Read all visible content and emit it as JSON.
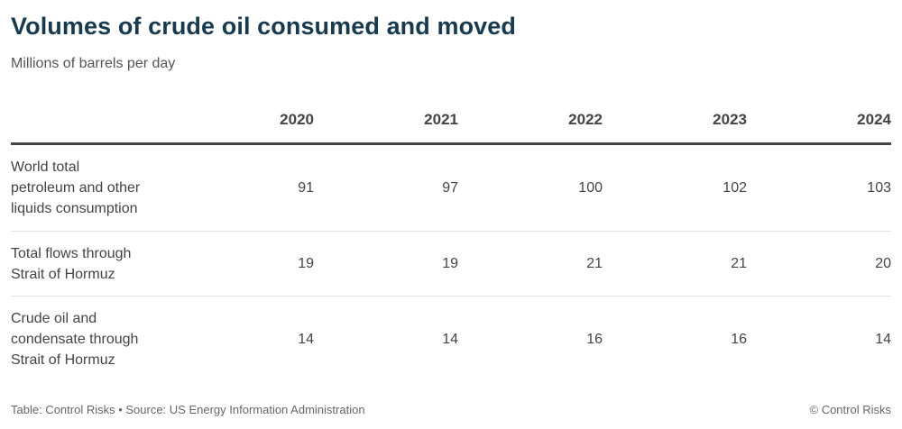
{
  "title": "Volumes of crude oil consumed and moved",
  "subtitle": "Millions of barrels per day",
  "chart_data": {
    "type": "table",
    "title": "Volumes of crude oil consumed and moved",
    "subtitle": "Millions of barrels per day",
    "columns": [
      "2020",
      "2021",
      "2022",
      "2023",
      "2024"
    ],
    "rows": [
      {
        "label": "World total petroleum and other liquids consumption",
        "label_lines": [
          "World total",
          "petroleum and other",
          "liquids consumption"
        ],
        "values": [
          "91",
          "97",
          "100",
          "102",
          "103"
        ]
      },
      {
        "label": "Total flows through Strait of Hormuz",
        "label_lines": [
          "Total flows through",
          "Strait of Hormuz"
        ],
        "values": [
          "19",
          "19",
          "21",
          "21",
          "20"
        ]
      },
      {
        "label": "Crude oil and condensate through Strait of Hormuz",
        "label_lines": [
          "Crude oil and",
          "condensate through",
          "Strait of Hormuz"
        ],
        "values": [
          "14",
          "14",
          "16",
          "16",
          "14"
        ]
      }
    ]
  },
  "footer": {
    "source": "Table: Control Risks • Source: US Energy Information Administration",
    "credit": "© Control Risks"
  },
  "colors": {
    "title": "#173a4e",
    "text": "#444444",
    "header_rule": "#444444",
    "row_rule": "#e3e3e3"
  }
}
